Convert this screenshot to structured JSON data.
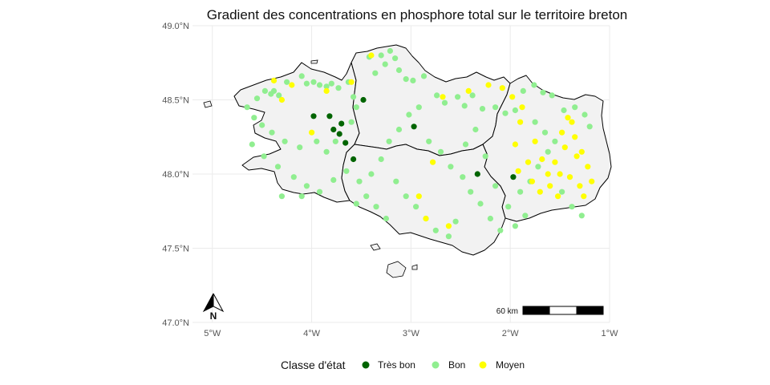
{
  "map": {
    "title": "Gradient des concentrations en phosphore total sur le territoire breton",
    "lon_ticks": [
      {
        "value": -5,
        "label": "5°W"
      },
      {
        "value": -4,
        "label": "4°W"
      },
      {
        "value": -3,
        "label": "3°W"
      },
      {
        "value": -2,
        "label": "2°W"
      },
      {
        "value": -1,
        "label": "1°W"
      }
    ],
    "lat_ticks": [
      {
        "value": 49.0,
        "label": "49.0°N"
      },
      {
        "value": 48.5,
        "label": "48.5°N"
      },
      {
        "value": 48.0,
        "label": "48.0°N"
      },
      {
        "value": 47.5,
        "label": "47.5°N"
      },
      {
        "value": 47.0,
        "label": "47.0°N"
      }
    ],
    "lon_range": [
      -5.2,
      -1.0
    ],
    "lat_range": [
      47.0,
      49.0
    ],
    "north_arrow_label": "N",
    "scale_bar_label": "60 km",
    "legend": {
      "title": "Classe d'état",
      "placement": "bottom",
      "classes": [
        {
          "key": "tres_bon",
          "label": "Très bon",
          "color": "#006400"
        },
        {
          "key": "bon",
          "label": "Bon",
          "color": "#90ee90"
        },
        {
          "key": "moyen",
          "label": "Moyen",
          "color": "#ffff00"
        }
      ]
    },
    "stations": {
      "tres_bon": [
        [
          -3.98,
          48.39
        ],
        [
          -3.82,
          48.39
        ],
        [
          -3.78,
          48.3
        ],
        [
          -3.7,
          48.34
        ],
        [
          -3.72,
          48.27
        ],
        [
          -3.66,
          48.21
        ],
        [
          -3.58,
          48.1
        ],
        [
          -3.48,
          48.5
        ],
        [
          -2.97,
          48.32
        ],
        [
          -2.33,
          48.0
        ],
        [
          -1.97,
          47.98
        ]
      ],
      "bon": [
        [
          -4.65,
          48.45
        ],
        [
          -4.55,
          48.51
        ],
        [
          -4.47,
          48.56
        ],
        [
          -4.41,
          48.54
        ],
        [
          -4.38,
          48.56
        ],
        [
          -4.33,
          48.53
        ],
        [
          -4.25,
          48.62
        ],
        [
          -4.1,
          48.66
        ],
        [
          -4.05,
          48.61
        ],
        [
          -3.98,
          48.62
        ],
        [
          -3.92,
          48.6
        ],
        [
          -3.85,
          48.59
        ],
        [
          -3.8,
          48.61
        ],
        [
          -3.73,
          48.58
        ],
        [
          -3.63,
          48.62
        ],
        [
          -3.58,
          48.52
        ],
        [
          -3.42,
          48.79
        ],
        [
          -3.36,
          48.68
        ],
        [
          -3.3,
          48.8
        ],
        [
          -3.26,
          48.74
        ],
        [
          -3.21,
          48.83
        ],
        [
          -3.16,
          48.78
        ],
        [
          -3.12,
          48.7
        ],
        [
          -3.05,
          48.64
        ],
        [
          -2.98,
          48.63
        ],
        [
          -2.87,
          48.66
        ],
        [
          -2.74,
          48.53
        ],
        [
          -2.66,
          48.48
        ],
        [
          -2.53,
          48.52
        ],
        [
          -2.46,
          48.46
        ],
        [
          -2.38,
          48.53
        ],
        [
          -2.28,
          48.44
        ],
        [
          -2.15,
          48.45
        ],
        [
          -2.05,
          48.41
        ],
        [
          -1.95,
          48.43
        ],
        [
          -1.87,
          48.56
        ],
        [
          -1.76,
          48.6
        ],
        [
          -1.67,
          48.55
        ],
        [
          -1.58,
          48.53
        ],
        [
          -1.46,
          48.43
        ],
        [
          -1.35,
          48.45
        ],
        [
          -1.25,
          48.4
        ],
        [
          -1.2,
          48.32
        ],
        [
          -4.58,
          48.38
        ],
        [
          -4.5,
          48.33
        ],
        [
          -4.4,
          48.28
        ],
        [
          -4.27,
          48.22
        ],
        [
          -4.12,
          48.18
        ],
        [
          -3.95,
          48.22
        ],
        [
          -3.85,
          48.15
        ],
        [
          -3.76,
          48.22
        ],
        [
          -4.6,
          48.2
        ],
        [
          -4.48,
          48.12
        ],
        [
          -4.34,
          48.05
        ],
        [
          -4.18,
          47.98
        ],
        [
          -4.05,
          47.92
        ],
        [
          -3.92,
          47.88
        ],
        [
          -3.78,
          47.96
        ],
        [
          -4.3,
          47.85
        ],
        [
          -4.1,
          47.85
        ],
        [
          -3.65,
          48.02
        ],
        [
          -3.52,
          47.95
        ],
        [
          -3.4,
          48.0
        ],
        [
          -3.3,
          48.1
        ],
        [
          -3.22,
          48.22
        ],
        [
          -3.12,
          48.3
        ],
        [
          -3.02,
          48.4
        ],
        [
          -2.92,
          48.45
        ],
        [
          -2.82,
          48.22
        ],
        [
          -2.7,
          48.15
        ],
        [
          -2.6,
          48.05
        ],
        [
          -2.48,
          47.98
        ],
        [
          -2.4,
          47.88
        ],
        [
          -2.3,
          47.8
        ],
        [
          -2.2,
          47.7
        ],
        [
          -2.1,
          47.62
        ],
        [
          -2.02,
          47.78
        ],
        [
          -1.9,
          47.88
        ],
        [
          -1.8,
          47.95
        ],
        [
          -1.72,
          48.05
        ],
        [
          -1.62,
          48.15
        ],
        [
          -1.55,
          48.22
        ],
        [
          -1.48,
          47.88
        ],
        [
          -1.38,
          47.78
        ],
        [
          -1.28,
          47.72
        ],
        [
          -3.15,
          47.95
        ],
        [
          -3.05,
          47.85
        ],
        [
          -2.95,
          47.78
        ],
        [
          -2.85,
          47.7
        ],
        [
          -2.75,
          47.62
        ],
        [
          -2.62,
          47.58
        ],
        [
          -2.55,
          47.68
        ],
        [
          -3.35,
          47.78
        ],
        [
          -3.25,
          47.7
        ],
        [
          -3.45,
          47.85
        ],
        [
          -3.55,
          47.8
        ],
        [
          -1.95,
          47.65
        ],
        [
          -1.85,
          47.72
        ],
        [
          -2.45,
          48.2
        ],
        [
          -2.35,
          48.3
        ],
        [
          -1.75,
          48.35
        ],
        [
          -1.65,
          48.28
        ],
        [
          -2.25,
          48.12
        ],
        [
          -2.15,
          47.92
        ],
        [
          -3.6,
          48.35
        ],
        [
          -3.55,
          48.45
        ]
      ],
      "moyen": [
        [
          -4.38,
          48.63
        ],
        [
          -4.2,
          48.6
        ],
        [
          -3.85,
          48.56
        ],
        [
          -4.0,
          48.28
        ],
        [
          -3.4,
          48.8
        ],
        [
          -2.68,
          48.52
        ],
        [
          -2.42,
          48.56
        ],
        [
          -2.22,
          48.6
        ],
        [
          -2.08,
          48.58
        ],
        [
          -1.98,
          48.52
        ],
        [
          -1.9,
          48.35
        ],
        [
          -1.75,
          48.22
        ],
        [
          -1.68,
          48.1
        ],
        [
          -1.55,
          48.08
        ],
        [
          -1.45,
          48.18
        ],
        [
          -1.35,
          48.25
        ],
        [
          -1.28,
          48.15
        ],
        [
          -1.22,
          48.05
        ],
        [
          -1.18,
          47.95
        ],
        [
          -1.3,
          47.92
        ],
        [
          -1.4,
          47.98
        ],
        [
          -1.5,
          48.0
        ],
        [
          -1.6,
          47.92
        ],
        [
          -1.7,
          47.88
        ],
        [
          -1.48,
          48.28
        ],
        [
          -1.38,
          48.35
        ],
        [
          -1.26,
          47.85
        ],
        [
          -1.82,
          48.08
        ],
        [
          -1.92,
          48.02
        ],
        [
          -2.62,
          47.65
        ],
        [
          -2.78,
          48.08
        ],
        [
          -2.92,
          47.85
        ],
        [
          -1.52,
          47.85
        ],
        [
          -1.42,
          48.38
        ],
        [
          -1.62,
          48.0
        ],
        [
          -1.33,
          48.12
        ],
        [
          -1.88,
          48.45
        ],
        [
          -1.95,
          48.2
        ],
        [
          -1.78,
          47.95
        ],
        [
          -4.3,
          48.5
        ],
        [
          -3.6,
          48.62
        ],
        [
          -2.85,
          47.7
        ]
      ]
    }
  }
}
